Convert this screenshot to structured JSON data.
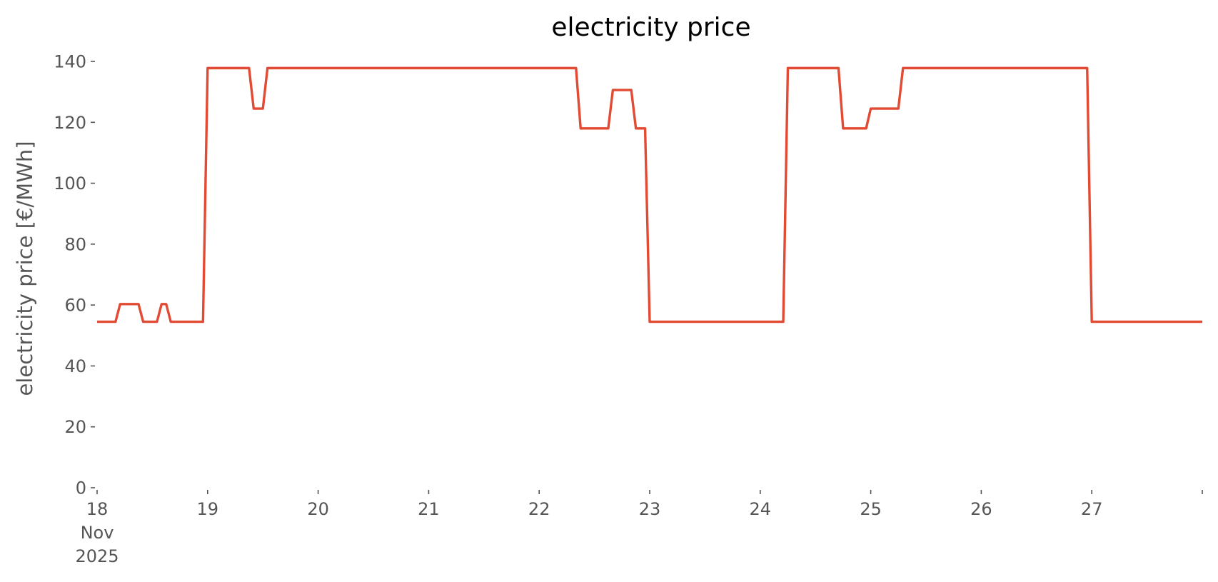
{
  "chart_data": {
    "type": "line",
    "title": "electricity price",
    "xlabel": "",
    "ylabel": "electricity price [€/MWh]",
    "ylim": [
      0,
      140
    ],
    "xlim": [
      "2025-11-18T00:00",
      "2025-11-28T00:00"
    ],
    "yticks": [
      0,
      20,
      40,
      60,
      80,
      100,
      120,
      140
    ],
    "ytick_labels": [
      "0",
      "20",
      "40",
      "60",
      "80",
      "100",
      "120",
      "140"
    ],
    "xticks": [
      "2025-11-18",
      "2025-11-19",
      "2025-11-20",
      "2025-11-21",
      "2025-11-22",
      "2025-11-23",
      "2025-11-24",
      "2025-11-25",
      "2025-11-26",
      "2025-11-27",
      "2025-11-28"
    ],
    "xtick_labels": [
      "18\nNov\n2025",
      "19",
      "20",
      "21",
      "22",
      "23",
      "24",
      "25",
      "26",
      "27",
      ""
    ],
    "grid": false,
    "legend": "none",
    "line_color": "#E24A33",
    "series": [
      {
        "x": [
          "2025-11-18T00:00",
          "2025-11-18T04:00",
          "2025-11-18T05:00",
          "2025-11-18T09:00",
          "2025-11-18T10:00",
          "2025-11-18T13:00",
          "2025-11-18T14:00",
          "2025-11-18T15:00",
          "2025-11-18T16:00",
          "2025-11-18T23:00",
          "2025-11-19T00:00",
          "2025-11-19T09:00",
          "2025-11-19T10:00",
          "2025-11-19T12:00",
          "2025-11-19T13:00",
          "2025-11-22T08:00",
          "2025-11-22T09:00",
          "2025-11-22T15:00",
          "2025-11-22T16:00",
          "2025-11-22T20:00",
          "2025-11-22T21:00",
          "2025-11-22T23:00",
          "2025-11-23T00:00",
          "2025-11-24T05:00",
          "2025-11-24T06:00",
          "2025-11-24T17:00",
          "2025-11-24T18:00",
          "2025-11-24T23:00",
          "2025-11-25T00:00",
          "2025-11-25T06:00",
          "2025-11-25T07:00",
          "2025-11-26T23:00",
          "2025-11-27T00:00",
          "2025-11-28T00:00"
        ],
        "y": [
          54.5,
          54.5,
          60.3,
          60.3,
          54.5,
          54.5,
          60.3,
          60.3,
          54.5,
          54.5,
          137.8,
          137.8,
          124.5,
          124.5,
          137.8,
          137.8,
          118,
          118,
          130.6,
          130.6,
          118,
          118,
          54.5,
          54.5,
          137.8,
          137.8,
          118,
          118,
          124.5,
          124.5,
          137.8,
          137.8,
          54.5,
          54.5
        ]
      }
    ]
  }
}
